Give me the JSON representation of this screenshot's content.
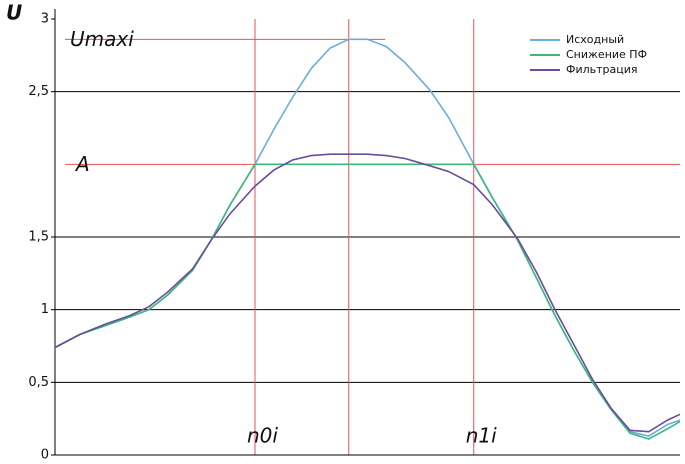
{
  "chart_data": {
    "type": "line",
    "y_label": "U",
    "x": [
      0,
      4,
      8,
      12,
      15,
      18,
      22,
      25,
      28,
      32,
      35,
      38,
      41,
      44,
      47,
      50,
      53,
      56,
      60,
      63,
      67,
      70,
      74,
      77,
      80,
      83,
      86,
      89,
      92,
      95,
      98,
      100
    ],
    "series": [
      {
        "name": "Исходный",
        "color": "#6aaedc",
        "values": [
          0.74,
          0.83,
          0.89,
          0.95,
          1.0,
          1.1,
          1.27,
          1.48,
          1.72,
          2.0,
          2.24,
          2.46,
          2.66,
          2.8,
          2.86,
          2.86,
          2.81,
          2.7,
          2.51,
          2.32,
          2.0,
          1.77,
          1.48,
          1.22,
          0.96,
          0.72,
          0.5,
          0.31,
          0.16,
          0.13,
          0.21,
          0.24
        ]
      },
      {
        "name": "Снижение ПФ",
        "color": "#3cb878",
        "values": [
          0.74,
          0.83,
          0.89,
          0.95,
          1.0,
          1.1,
          1.27,
          1.48,
          1.72,
          2.0,
          2.0,
          2.0,
          2.0,
          2.0,
          2.0,
          2.0,
          2.0,
          2.0,
          2.0,
          2.0,
          2.0,
          1.77,
          1.48,
          1.22,
          0.96,
          0.72,
          0.5,
          0.31,
          0.15,
          0.11,
          0.18,
          0.23
        ]
      },
      {
        "name": "Фильтрация",
        "color": "#6a4c9c",
        "values": [
          0.74,
          0.83,
          0.9,
          0.96,
          1.02,
          1.12,
          1.28,
          1.48,
          1.66,
          1.85,
          1.96,
          2.03,
          2.06,
          2.07,
          2.07,
          2.07,
          2.06,
          2.04,
          1.99,
          1.95,
          1.86,
          1.72,
          1.49,
          1.26,
          1.0,
          0.76,
          0.52,
          0.32,
          0.17,
          0.16,
          0.24,
          0.28
        ]
      }
    ],
    "xlim": [
      0,
      100
    ],
    "ylim": [
      0,
      3
    ],
    "yticks": [
      0,
      {
        "value": 0.5,
        "label": "0,5"
      },
      1,
      {
        "value": 1.5,
        "label": "1,5"
      },
      {
        "value": 2.5,
        "label": "2,5"
      },
      3
    ],
    "grid": true,
    "legend": "top-right",
    "ref_color": "#e8505a",
    "hlines": [
      {
        "label": "Umaxi",
        "value": 2.86
      },
      {
        "label": "A",
        "value": 2.0
      }
    ],
    "vlines": [
      {
        "value": 32,
        "label": "n0i"
      },
      {
        "value": 47
      },
      {
        "value": 67,
        "label": "n1i"
      }
    ]
  }
}
